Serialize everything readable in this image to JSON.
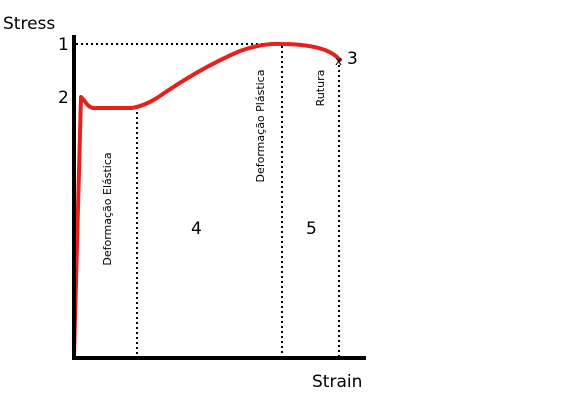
{
  "axes": {
    "y_title": "Stress",
    "x_title": "Strain"
  },
  "points": {
    "p1": "1",
    "p2": "2",
    "p3": "3",
    "p3_marker": "x"
  },
  "regions": {
    "r4": "4",
    "r5": "5"
  },
  "zone_labels": {
    "elastic": "Deformação Elástica",
    "plastic": "Deformação Plástica",
    "rupture": "Rutura"
  },
  "colors": {
    "curve": "#e8201c",
    "axes": "#000000",
    "guides": "#000000"
  }
}
